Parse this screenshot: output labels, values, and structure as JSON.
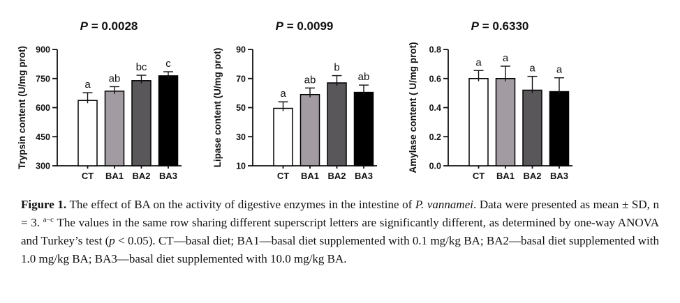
{
  "page": {
    "background": "#ffffff",
    "text_color": "#111111"
  },
  "caption": {
    "segments": [
      {
        "text": "Figure 1.",
        "bold": true
      },
      {
        "text": " The effect of BA on the activity of digestive enzymes in the intestine of "
      },
      {
        "text": "P. vannamei",
        "italic": true
      },
      {
        "text": ". Data were presented as mean ± SD, n = 3. "
      },
      {
        "text": "a–c",
        "sup": true
      },
      {
        "text": " The values in the same row sharing different superscript letters are significantly different, as determined by one-way ANOVA and Turkey’s test ("
      },
      {
        "text": "p",
        "italic": true
      },
      {
        "text": " < 0.05). CT—basal diet; BA1—basal diet supplemented with 0.1 mg/kg BA; BA2—basal diet supplemented with 1.0 mg/kg BA; BA3—basal diet supplemented with 10.0 mg/kg BA."
      }
    ]
  },
  "chart_data": [
    {
      "type": "bar",
      "title": "P = 0.0028",
      "ylabel": "Trypsin content (U/mg prot)",
      "xlabel": "",
      "categories": [
        "CT",
        "BA1",
        "BA2",
        "BA3"
      ],
      "values": [
        637,
        685,
        739,
        764
      ],
      "sd_upper": [
        40,
        23,
        28,
        21
      ],
      "sig_letters": [
        "a",
        "ab",
        "bc",
        "c"
      ],
      "ylim": [
        300,
        900
      ],
      "yticks": [
        "300",
        "450",
        "600",
        "750",
        "900"
      ],
      "bar_colors": [
        "#ffffff",
        "#a29ca2",
        "#595759",
        "#000000"
      ],
      "bar_outline": "#000000",
      "grid": false,
      "legend": "none"
    },
    {
      "type": "bar",
      "title": "P = 0.0099",
      "ylabel": "Lipase content (U/mg prot)",
      "xlabel": "",
      "categories": [
        "CT",
        "BA1",
        "BA2",
        "BA3"
      ],
      "values": [
        49.5,
        59,
        67,
        60.5
      ],
      "sd_upper": [
        4.5,
        4.5,
        5,
        5
      ],
      "sig_letters": [
        "a",
        "ab",
        "b",
        "ab"
      ],
      "ylim": [
        10,
        90
      ],
      "yticks": [
        "10",
        "30",
        "50",
        "70",
        "90"
      ],
      "bar_colors": [
        "#ffffff",
        "#a29ca2",
        "#595759",
        "#000000"
      ],
      "bar_outline": "#000000",
      "grid": false,
      "legend": "none"
    },
    {
      "type": "bar",
      "title": "P = 0.6330",
      "ylabel": "Amylase content ( U/mg prot)",
      "xlabel": "",
      "categories": [
        "CT",
        "BA1",
        "BA2",
        "BA3"
      ],
      "values": [
        0.6,
        0.6,
        0.52,
        0.51
      ],
      "sd_upper": [
        0.055,
        0.085,
        0.095,
        0.095
      ],
      "sig_letters": [
        "a",
        "a",
        "a",
        "a"
      ],
      "ylim": [
        0,
        0.8
      ],
      "yticks": [
        "0.0",
        "0.2",
        "0.4",
        "0.6",
        "0.8"
      ],
      "bar_colors": [
        "#ffffff",
        "#a29ca2",
        "#595759",
        "#000000"
      ],
      "bar_outline": "#000000",
      "grid": false,
      "legend": "none"
    }
  ]
}
